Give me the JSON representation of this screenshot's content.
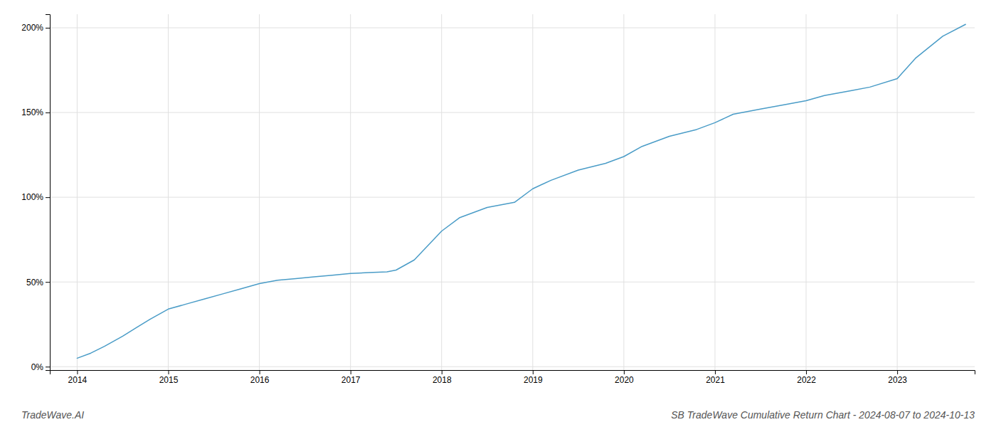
{
  "chart_data": {
    "type": "line",
    "title": "SB TradeWave Cumulative Return Chart - 2024-08-07 to 2024-10-13",
    "annotations": [
      "TradeWave.AI"
    ],
    "x": [
      2014.0,
      2014.15,
      2014.3,
      2014.5,
      2014.65,
      2014.8,
      2015.0,
      2015.2,
      2015.4,
      2015.6,
      2015.8,
      2016.0,
      2016.2,
      2016.4,
      2016.6,
      2016.8,
      2017.0,
      2017.2,
      2017.4,
      2017.5,
      2017.7,
      2018.0,
      2018.2,
      2018.5,
      2018.8,
      2019.0,
      2019.2,
      2019.5,
      2019.8,
      2020.0,
      2020.2,
      2020.5,
      2020.8,
      2021.0,
      2021.2,
      2021.5,
      2021.8,
      2022.0,
      2022.2,
      2022.5,
      2022.7,
      2023.0,
      2023.2,
      2023.5,
      2023.75
    ],
    "values": [
      0.05,
      0.08,
      0.12,
      0.18,
      0.23,
      0.28,
      0.34,
      0.37,
      0.4,
      0.43,
      0.46,
      0.49,
      0.51,
      0.52,
      0.53,
      0.54,
      0.55,
      0.555,
      0.56,
      0.57,
      0.63,
      0.8,
      0.88,
      0.94,
      0.97,
      1.05,
      1.1,
      1.16,
      1.2,
      1.24,
      1.3,
      1.36,
      1.4,
      1.44,
      1.49,
      1.52,
      1.55,
      1.57,
      1.6,
      1.63,
      1.65,
      1.7,
      1.82,
      1.95,
      2.02
    ],
    "color": "#4a9cc7",
    "xlim": [
      2013.7,
      2023.85
    ],
    "xticks": [
      2014,
      2015,
      2016,
      2017,
      2018,
      2019,
      2020,
      2021,
      2022,
      2023
    ],
    "ylim": [
      -0.02,
      2.08
    ],
    "yticks": [
      {
        "value": 0.0,
        "label": "0%"
      },
      {
        "value": 0.5,
        "label": "50%"
      },
      {
        "value": 1.0,
        "label": "100%"
      },
      {
        "value": 1.5,
        "label": "150%"
      },
      {
        "value": 2.0,
        "label": "200%"
      }
    ],
    "grid": true
  }
}
